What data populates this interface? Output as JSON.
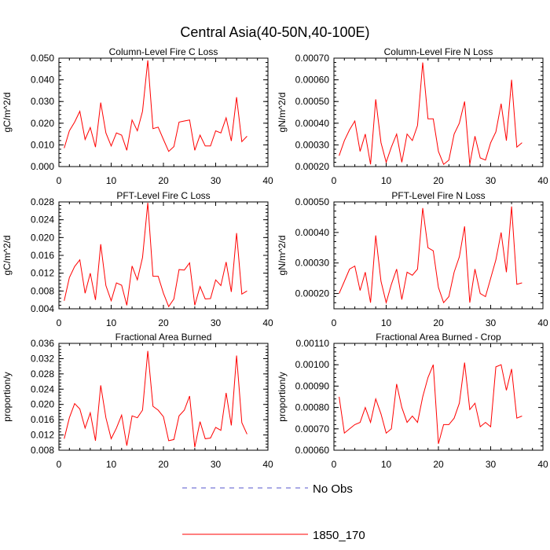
{
  "title": "Central Asia(40-50N,40-100E)",
  "colors": {
    "series": "#ff0000",
    "no_obs": "#5555cc",
    "axis": "#000000"
  },
  "legend": [
    {
      "label": "No Obs",
      "style": "dashed",
      "color": "#5555cc"
    },
    {
      "label": "1850_170",
      "style": "solid",
      "color": "#ff0000"
    }
  ],
  "chart_data": [
    {
      "type": "line",
      "title": "Column-Level Fire C Loss",
      "ylabel": "gC/m^2/d",
      "xlim": [
        0,
        40
      ],
      "xticks": [
        0,
        10,
        20,
        30,
        40
      ],
      "ylim": [
        0.0,
        0.05
      ],
      "yticks": [
        "0.000",
        "0.010",
        "0.020",
        "0.030",
        "0.040",
        "0.050"
      ],
      "x": [
        1,
        2,
        3,
        4,
        5,
        6,
        7,
        8,
        9,
        10,
        11,
        12,
        13,
        14,
        15,
        16,
        17,
        18,
        19,
        20,
        21,
        22,
        23,
        24,
        25,
        26,
        27,
        28,
        29,
        30,
        31,
        32,
        33,
        34,
        35,
        36
      ],
      "series": [
        {
          "name": "1850_170",
          "values": [
            0.0085,
            0.0165,
            0.0205,
            0.0255,
            0.0125,
            0.018,
            0.009,
            0.0295,
            0.0155,
            0.0095,
            0.0155,
            0.0145,
            0.0075,
            0.0215,
            0.0165,
            0.0255,
            0.049,
            0.0175,
            0.0182,
            0.0125,
            0.007,
            0.0092,
            0.0205,
            0.021,
            0.0215,
            0.0075,
            0.0145,
            0.0095,
            0.0095,
            0.0165,
            0.0155,
            0.0225,
            0.0118,
            0.032,
            0.0115,
            0.014
          ]
        }
      ]
    },
    {
      "type": "line",
      "title": "Column-Level Fire N Loss",
      "ylabel": "gN/m^2/d",
      "xlim": [
        0,
        40
      ],
      "xticks": [
        0,
        10,
        20,
        30,
        40
      ],
      "ylim": [
        0.0002,
        0.0007
      ],
      "yticks": [
        "0.00020",
        "0.00030",
        "0.00040",
        "0.00050",
        "0.00060",
        "0.00070"
      ],
      "x": [
        1,
        2,
        3,
        4,
        5,
        6,
        7,
        8,
        9,
        10,
        11,
        12,
        13,
        14,
        15,
        16,
        17,
        18,
        19,
        20,
        21,
        22,
        23,
        24,
        25,
        26,
        27,
        28,
        29,
        30,
        31,
        32,
        33,
        34,
        35,
        36
      ],
      "series": [
        {
          "name": "1850_170",
          "values": [
            0.00025,
            0.00032,
            0.00037,
            0.00041,
            0.00027,
            0.00035,
            0.00021,
            0.00051,
            0.00031,
            0.00022,
            0.00029,
            0.00035,
            0.00022,
            0.00035,
            0.00032,
            0.00039,
            0.00068,
            0.00042,
            0.00042,
            0.00027,
            0.00021,
            0.00023,
            0.00035,
            0.0004,
            0.0005,
            0.00021,
            0.00034,
            0.00024,
            0.00023,
            0.00031,
            0.00036,
            0.00049,
            0.00032,
            0.0006,
            0.00029,
            0.00031
          ]
        }
      ]
    },
    {
      "type": "line",
      "title": "PFT-Level Fire C Loss",
      "ylabel": "gC/m^2/d",
      "xlim": [
        0,
        40
      ],
      "xticks": [
        0,
        10,
        20,
        30,
        40
      ],
      "ylim": [
        0.004,
        0.028
      ],
      "yticks": [
        "0.004",
        "0.008",
        "0.012",
        "0.016",
        "0.020",
        "0.024",
        "0.028"
      ],
      "x": [
        1,
        2,
        3,
        4,
        5,
        6,
        7,
        8,
        9,
        10,
        11,
        12,
        13,
        14,
        15,
        16,
        17,
        18,
        19,
        20,
        21,
        22,
        23,
        24,
        25,
        26,
        27,
        28,
        29,
        30,
        31,
        32,
        33,
        34,
        35,
        36
      ],
      "series": [
        {
          "name": "1850_170",
          "values": [
            0.0058,
            0.011,
            0.0135,
            0.015,
            0.0075,
            0.012,
            0.006,
            0.0185,
            0.0092,
            0.0058,
            0.0098,
            0.0093,
            0.0048,
            0.0136,
            0.0105,
            0.0155,
            0.0278,
            0.0113,
            0.0113,
            0.0075,
            0.0045,
            0.0062,
            0.0128,
            0.0127,
            0.0143,
            0.0048,
            0.009,
            0.0062,
            0.0063,
            0.0105,
            0.0092,
            0.0145,
            0.0078,
            0.021,
            0.0073,
            0.008
          ]
        }
      ]
    },
    {
      "type": "line",
      "title": "PFT-Level Fire N Loss",
      "ylabel": "gN/m^2/d",
      "xlim": [
        0,
        40
      ],
      "xticks": [
        0,
        10,
        20,
        30,
        40
      ],
      "ylim": [
        0.00015,
        0.0005
      ],
      "yticks": [
        "0.00020",
        "0.00030",
        "0.00040",
        "0.00050"
      ],
      "x": [
        1,
        2,
        3,
        4,
        5,
        6,
        7,
        8,
        9,
        10,
        11,
        12,
        13,
        14,
        15,
        16,
        17,
        18,
        19,
        20,
        21,
        22,
        23,
        24,
        25,
        26,
        27,
        28,
        29,
        30,
        31,
        32,
        33,
        34,
        35,
        36
      ],
      "series": [
        {
          "name": "1850_170",
          "values": [
            0.0002,
            0.00024,
            0.00028,
            0.00029,
            0.00021,
            0.00027,
            0.00017,
            0.00039,
            0.00024,
            0.00017,
            0.00023,
            0.00028,
            0.00018,
            0.00027,
            0.00026,
            0.00028,
            0.00048,
            0.00035,
            0.00034,
            0.00022,
            0.00017,
            0.00019,
            0.00027,
            0.00032,
            0.00042,
            0.00017,
            0.00028,
            0.0002,
            0.00019,
            0.00025,
            0.00031,
            0.0004,
            0.00027,
            0.000485,
            0.00023,
            0.000235
          ]
        }
      ]
    },
    {
      "type": "line",
      "title": "Fractional Area Burned",
      "ylabel": "proportion/y",
      "xlim": [
        0,
        40
      ],
      "xticks": [
        0,
        10,
        20,
        30,
        40
      ],
      "ylim": [
        0.008,
        0.036
      ],
      "yticks": [
        "0.008",
        "0.012",
        "0.016",
        "0.020",
        "0.024",
        "0.028",
        "0.032",
        "0.036"
      ],
      "x": [
        1,
        2,
        3,
        4,
        5,
        6,
        7,
        8,
        9,
        10,
        11,
        12,
        13,
        14,
        15,
        16,
        17,
        18,
        19,
        20,
        21,
        22,
        23,
        24,
        25,
        26,
        27,
        28,
        29,
        30,
        31,
        32,
        33,
        34,
        35,
        36
      ],
      "series": [
        {
          "name": "1850_170",
          "values": [
            0.011,
            0.0165,
            0.0202,
            0.0188,
            0.0138,
            0.0178,
            0.0105,
            0.025,
            0.0165,
            0.011,
            0.0138,
            0.0172,
            0.0092,
            0.017,
            0.0165,
            0.0185,
            0.034,
            0.0195,
            0.0185,
            0.0168,
            0.0105,
            0.0108,
            0.017,
            0.0185,
            0.0222,
            0.0088,
            0.0155,
            0.011,
            0.0112,
            0.014,
            0.0132,
            0.023,
            0.0145,
            0.0328,
            0.0152,
            0.0122
          ]
        }
      ]
    },
    {
      "type": "line",
      "title": "Fractional Area Burned - Crop",
      "ylabel": "proportion/y",
      "xlim": [
        0,
        40
      ],
      "xticks": [
        0,
        10,
        20,
        30,
        40
      ],
      "ylim": [
        0.0006,
        0.0011
      ],
      "yticks": [
        "0.00060",
        "0.00070",
        "0.00080",
        "0.00090",
        "0.00100",
        "0.00110"
      ],
      "x": [
        1,
        2,
        3,
        4,
        5,
        6,
        7,
        8,
        9,
        10,
        11,
        12,
        13,
        14,
        15,
        16,
        17,
        18,
        19,
        20,
        21,
        22,
        23,
        24,
        25,
        26,
        27,
        28,
        29,
        30,
        31,
        32,
        33,
        34,
        35,
        36
      ],
      "series": [
        {
          "name": "1850_170",
          "values": [
            0.00085,
            0.00068,
            0.0007,
            0.00072,
            0.00073,
            0.0008,
            0.00073,
            0.00084,
            0.00077,
            0.00068,
            0.0007,
            0.00091,
            0.0008,
            0.00073,
            0.00076,
            0.00073,
            0.00085,
            0.00094,
            0.001,
            0.00063,
            0.00072,
            0.00072,
            0.00075,
            0.00082,
            0.00101,
            0.00079,
            0.00082,
            0.00071,
            0.00073,
            0.00071,
            0.00099,
            0.001,
            0.00088,
            0.00098,
            0.00075,
            0.00076
          ]
        }
      ]
    }
  ]
}
